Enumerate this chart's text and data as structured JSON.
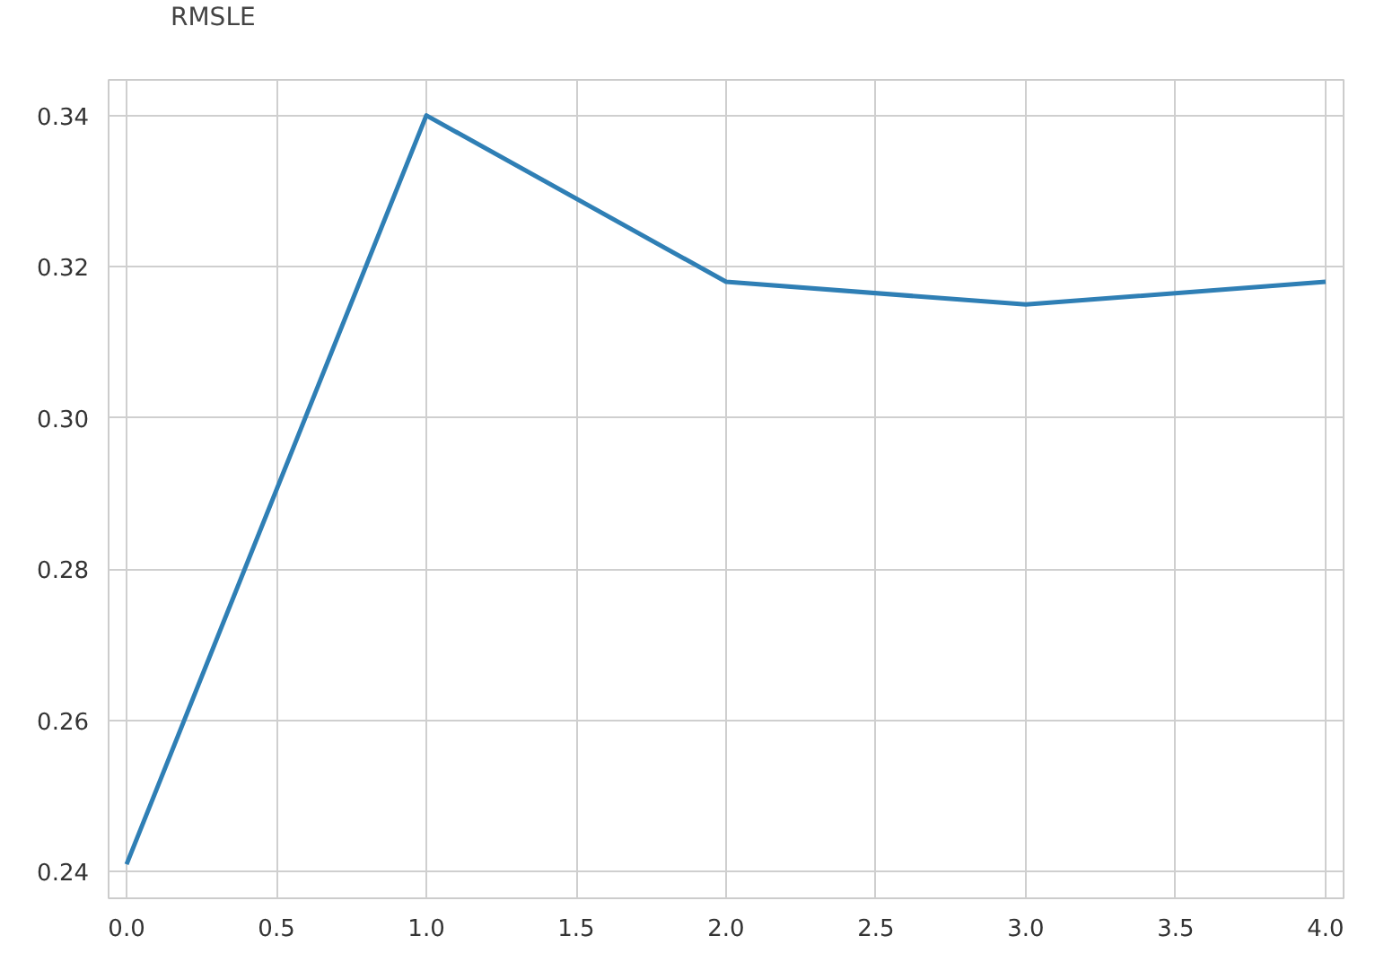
{
  "chart_data": {
    "type": "line",
    "x": [
      0,
      1,
      2,
      3,
      4
    ],
    "series": [
      {
        "name": "RMSLE",
        "color": "#2f7fb5",
        "values": [
          0.241,
          0.34,
          0.318,
          0.315,
          0.318
        ]
      }
    ],
    "xlim": [
      -0.06,
      4.06
    ],
    "ylim": [
      0.2365,
      0.3447
    ],
    "xticks": [
      {
        "value": 0,
        "label": "0.0"
      },
      {
        "value": 0.5,
        "label": "0.5"
      },
      {
        "value": 1,
        "label": "1.0"
      },
      {
        "value": 1.5,
        "label": "1.5"
      },
      {
        "value": 2,
        "label": "2.0"
      },
      {
        "value": 2.5,
        "label": "2.5"
      },
      {
        "value": 3,
        "label": "3.0"
      },
      {
        "value": 3.5,
        "label": "3.5"
      },
      {
        "value": 4,
        "label": "4.0"
      }
    ],
    "yticks": [
      {
        "value": 0.24,
        "label": "0.24"
      },
      {
        "value": 0.26,
        "label": "0.26"
      },
      {
        "value": 0.28,
        "label": "0.28"
      },
      {
        "value": 0.3,
        "label": "0.30"
      },
      {
        "value": 0.32,
        "label": "0.32"
      },
      {
        "value": 0.34,
        "label": "0.34"
      }
    ],
    "grid": true,
    "legend": "top left",
    "line_style": "solid",
    "marker": "none"
  }
}
